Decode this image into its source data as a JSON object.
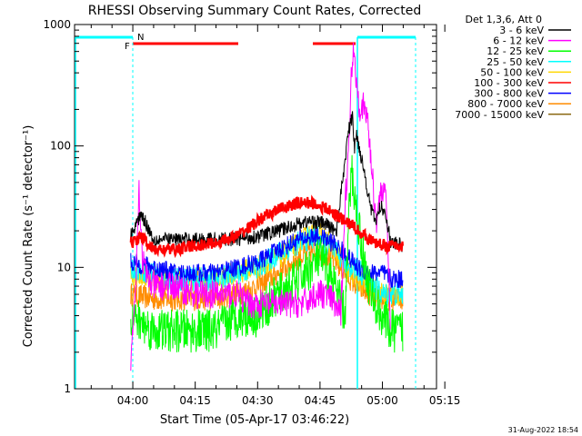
{
  "chart_data": {
    "type": "line",
    "title": "RHESSI Observing Summary Count Rates, Corrected",
    "xlabel": "Start Time (05-Apr-17 03:46:22)",
    "ylabel": "Corrected Count Rate (s⁻¹ detector⁻¹)",
    "yscale": "log",
    "ylim": [
      1,
      1000
    ],
    "xlim_min": [
      -14,
      73
    ],
    "x_units": "minutes after 04:00",
    "x_ticks": [
      {
        "v": 0,
        "label": "04:00"
      },
      {
        "v": 15,
        "label": "04:15"
      },
      {
        "v": 30,
        "label": "04:30"
      },
      {
        "v": 45,
        "label": "04:45"
      },
      {
        "v": 60,
        "label": "05:00"
      },
      {
        "v": 75,
        "label": "05:15"
      }
    ],
    "y_ticks": [
      {
        "v": 1,
        "label": "1"
      },
      {
        "v": 10,
        "label": "10"
      },
      {
        "v": 100,
        "label": "100"
      },
      {
        "v": 1000,
        "label": "1000"
      }
    ],
    "legend_title": "Det 1,3,6, Att 0",
    "legend_position": "right, outside plot",
    "series": [
      {
        "name": "3 - 6 keV",
        "color": "#000000",
        "x": [
          -0.5,
          2,
          5,
          10,
          15,
          20,
          25,
          30,
          35,
          40,
          43,
          46,
          49,
          51.8,
          52.8,
          53.3,
          53.8,
          54.5,
          55.5,
          56.5,
          57.5,
          58.5,
          59.5,
          60.8,
          62,
          65
        ],
        "y": [
          18,
          28,
          17,
          17,
          17,
          17,
          17,
          18,
          20,
          23,
          24,
          23,
          20,
          130,
          175,
          95,
          125,
          95,
          65,
          42,
          28,
          24,
          32,
          28,
          16,
          15
        ]
      },
      {
        "name": "6 - 12 keV",
        "color": "#ff00ff",
        "x": [
          -0.5,
          0.8,
          1.5,
          2.3,
          3.5,
          5,
          10,
          15,
          20,
          25,
          28,
          32,
          35,
          38,
          41,
          44,
          46.5,
          48.5,
          50,
          51,
          51.8,
          52.5,
          53,
          53.5,
          54.5,
          55.5,
          56.5,
          57.5,
          58.5,
          59.5,
          60.5,
          61.2,
          62
        ],
        "y": [
          1.5,
          10,
          45,
          12,
          8,
          7,
          7,
          6,
          6,
          6,
          5,
          5,
          5,
          5,
          5,
          6,
          6,
          5,
          4,
          35,
          75,
          360,
          680,
          420,
          210,
          210,
          160,
          60,
          24,
          40,
          48,
          20,
          3
        ]
      },
      {
        "name": "12 - 25 keV",
        "color": "#00ff00",
        "x": [
          -0.5,
          5,
          10,
          15,
          20,
          25,
          30,
          35,
          40,
          45,
          48,
          50,
          51,
          52,
          52.6,
          53.3,
          54.5,
          56,
          58,
          60,
          62,
          65
        ],
        "y": [
          4,
          3,
          3,
          3,
          3,
          4,
          4,
          6,
          8,
          12,
          8,
          5,
          4,
          28,
          65,
          38,
          20,
          9,
          5,
          4,
          3,
          3
        ]
      },
      {
        "name": "25 - 50 keV",
        "color": "#00ffff",
        "x": [
          -0.5,
          5,
          10,
          15,
          20,
          25,
          30,
          35,
          40,
          44,
          48,
          51,
          53,
          55,
          58,
          60,
          62,
          65
        ],
        "y": [
          10,
          9,
          8,
          8,
          8,
          9,
          10,
          13,
          16,
          18,
          14,
          11,
          10,
          9,
          7,
          6,
          6,
          6
        ]
      },
      {
        "name": "50 - 100 keV",
        "color": "#ffd700",
        "x": [
          -0.5,
          5,
          10,
          15,
          20,
          25,
          30,
          35,
          40,
          44,
          48,
          51,
          54,
          57,
          60,
          62,
          65
        ],
        "y": [
          9,
          8,
          8,
          8,
          8,
          9,
          10,
          12,
          16,
          20,
          15,
          10,
          8,
          7,
          6,
          6,
          6
        ]
      },
      {
        "name": "100 - 300 keV",
        "color": "#ff0000",
        "x": [
          -0.5,
          1,
          2,
          5,
          10,
          15,
          20,
          25,
          30,
          35,
          40,
          43,
          46,
          49,
          51,
          53,
          55,
          58,
          61,
          65
        ],
        "y": [
          16,
          17,
          18,
          14,
          14,
          15,
          16,
          18,
          24,
          30,
          34,
          34,
          31,
          27,
          24,
          22,
          19,
          16,
          15,
          15
        ]
      },
      {
        "name": "300 - 800 keV",
        "color": "#0000ff",
        "x": [
          -0.5,
          5,
          10,
          15,
          20,
          25,
          30,
          35,
          40,
          44,
          48,
          51,
          54,
          57,
          60,
          62,
          65
        ],
        "y": [
          11,
          10,
          9,
          9,
          9,
          10,
          11,
          14,
          17,
          18,
          16,
          13,
          10,
          9,
          9,
          8,
          8
        ]
      },
      {
        "name": "800 - 7000 keV",
        "color": "#ff8c00",
        "x": [
          -0.5,
          5,
          10,
          15,
          20,
          25,
          30,
          35,
          40,
          44,
          48,
          51,
          54,
          57,
          60,
          62,
          65
        ],
        "y": [
          6,
          5.5,
          5.5,
          5.5,
          5.5,
          6,
          7,
          9,
          12,
          14,
          12,
          9,
          7,
          6,
          5.5,
          5.5,
          5.5
        ]
      },
      {
        "name": "7000 - 15000 keV",
        "color": "#8b6914",
        "x": [],
        "y": []
      }
    ],
    "annotations": [
      {
        "text": "F",
        "color": "#ff0000"
      },
      {
        "text": "N",
        "color": "#00ffff"
      }
    ],
    "timestamp": "31-Aug-2022 18:54"
  }
}
